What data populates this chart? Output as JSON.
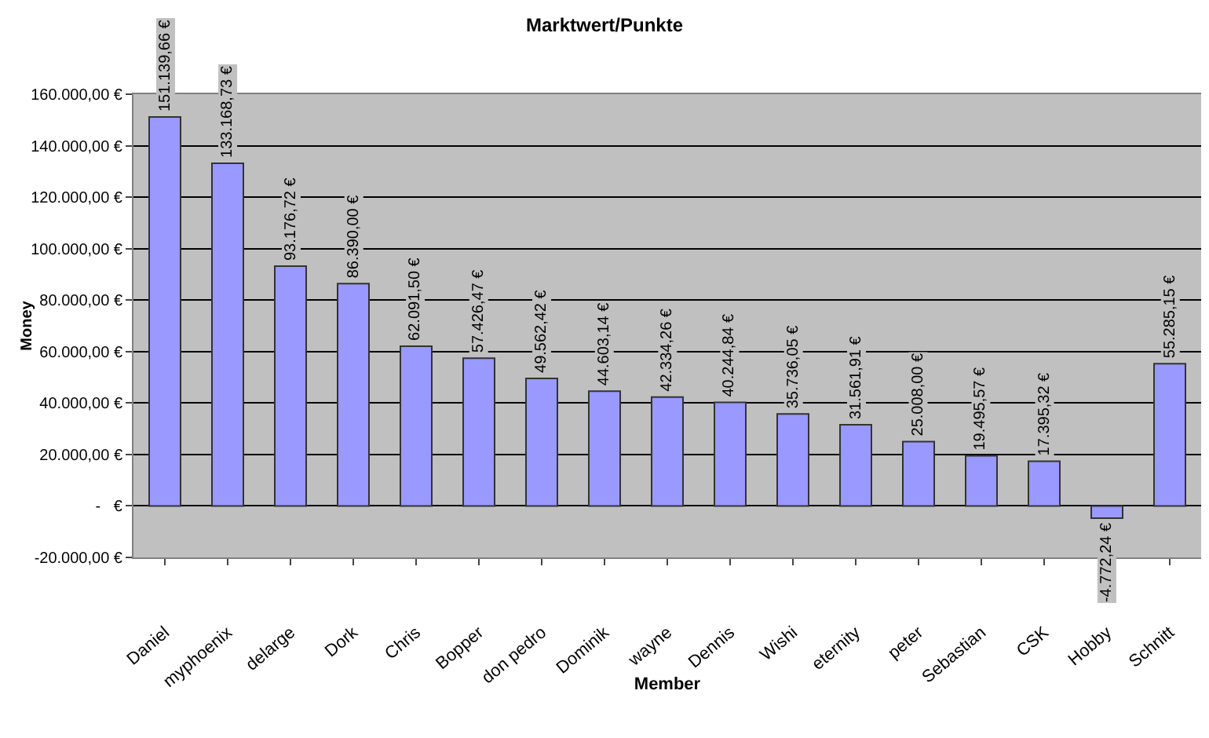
{
  "chart_data": {
    "type": "bar",
    "title": "Marktwert/Punkte",
    "xlabel": "Member",
    "ylabel": "Money",
    "categories": [
      "Daniel",
      "myphoenix",
      "delarge",
      "Dork",
      "Chris",
      "Bopper",
      "don pedro",
      "Dominik",
      "wayne",
      "Dennis",
      "Wishi",
      "eternity",
      "peter",
      "Sebastian",
      "CSK",
      "Hobby",
      "Schnitt"
    ],
    "values": [
      151139.66,
      133168.73,
      93176.72,
      86390.0,
      62091.5,
      57426.47,
      49562.42,
      44603.14,
      42334.26,
      40244.84,
      35736.05,
      31561.91,
      25008.0,
      19495.57,
      17395.32,
      -4772.24,
      55285.15
    ],
    "value_labels": [
      "151.139,66 €",
      "133.168,73 €",
      "93.176,72 €",
      "86.390,00 €",
      "62.091,50 €",
      "57.426,47 €",
      "49.562,42 €",
      "44.603,14 €",
      "42.334,26 €",
      "40.244,84 €",
      "35.736,05 €",
      "31.561,91 €",
      "25.008,00 €",
      "19.495,57 €",
      "17.395,32 €",
      "-4.772,24 €",
      "55.285,15 €"
    ],
    "color": "#9999ff",
    "ylim": [
      -20000,
      160000
    ],
    "yticks": [
      {
        "value": -20000,
        "label": "-20.000,00 €"
      },
      {
        "value": 0,
        "label": "-   €"
      },
      {
        "value": 20000,
        "label": "20.000,00 €"
      },
      {
        "value": 40000,
        "label": "40.000,00 €"
      },
      {
        "value": 60000,
        "label": "60.000,00 €"
      },
      {
        "value": 80000,
        "label": "80.000,00 €"
      },
      {
        "value": 100000,
        "label": "100.000,00 €"
      },
      {
        "value": 120000,
        "label": "120.000,00 €"
      },
      {
        "value": 140000,
        "label": "140.000,00 €"
      },
      {
        "value": 160000,
        "label": "160.000,00 €"
      }
    ],
    "grid": "y"
  }
}
